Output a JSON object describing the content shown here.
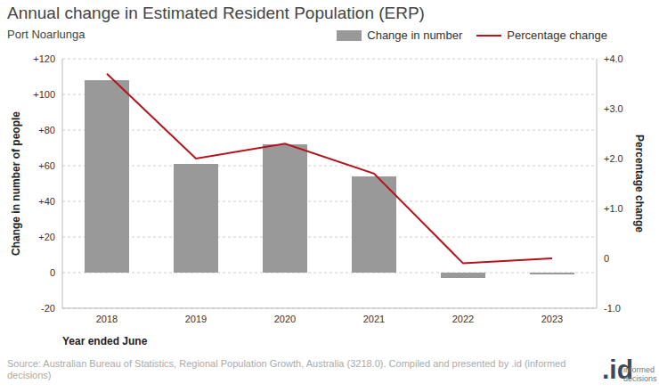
{
  "chart_data": {
    "type": "bar",
    "title": "Annual change in Estimated Resident Population (ERP)",
    "subtitle": "Port Noarlunga",
    "x_label": "Year ended June",
    "y_label": "Change in number of people",
    "y2_label": "Percentage change",
    "categories": [
      "2018",
      "2019",
      "2020",
      "2021",
      "2022",
      "2023"
    ],
    "series": [
      {
        "name": "Change in number",
        "type": "bar",
        "axis": "y",
        "color": "#999999",
        "values": [
          108,
          61,
          72,
          54,
          -3,
          -1
        ]
      },
      {
        "name": "Percentage change",
        "type": "line",
        "axis": "y2",
        "color": "#b5121b",
        "values": [
          3.7,
          2.0,
          2.3,
          1.7,
          -0.1,
          0.0
        ]
      }
    ],
    "ylim": [
      -20,
      120
    ],
    "yticks": [
      {
        "value": -20,
        "label": "-20"
      },
      0,
      {
        "value": 20,
        "label": "+20"
      },
      {
        "value": 40,
        "label": "+40"
      },
      {
        "value": 60,
        "label": "+60"
      },
      {
        "value": 80,
        "label": "+80"
      },
      {
        "value": 100,
        "label": "+100"
      },
      {
        "value": 120,
        "label": "+120"
      }
    ],
    "y2lim": [
      -1,
      4
    ],
    "y2ticks": [
      {
        "value": -1,
        "label": "-1.0"
      },
      0,
      {
        "value": 1,
        "label": "+1.0"
      },
      {
        "value": 2,
        "label": "+2.0"
      },
      {
        "value": 3,
        "label": "+3.0"
      },
      {
        "value": 4,
        "label": "+4.0"
      }
    ],
    "grid": true,
    "legend": "top right",
    "annotations": [
      "Source: Australian Bureau of Statistics, Regional Population Growth, Australia (3218.0). Compiled and presented by .id (informed decisions)",
      ".id",
      "informed decisions"
    ]
  }
}
